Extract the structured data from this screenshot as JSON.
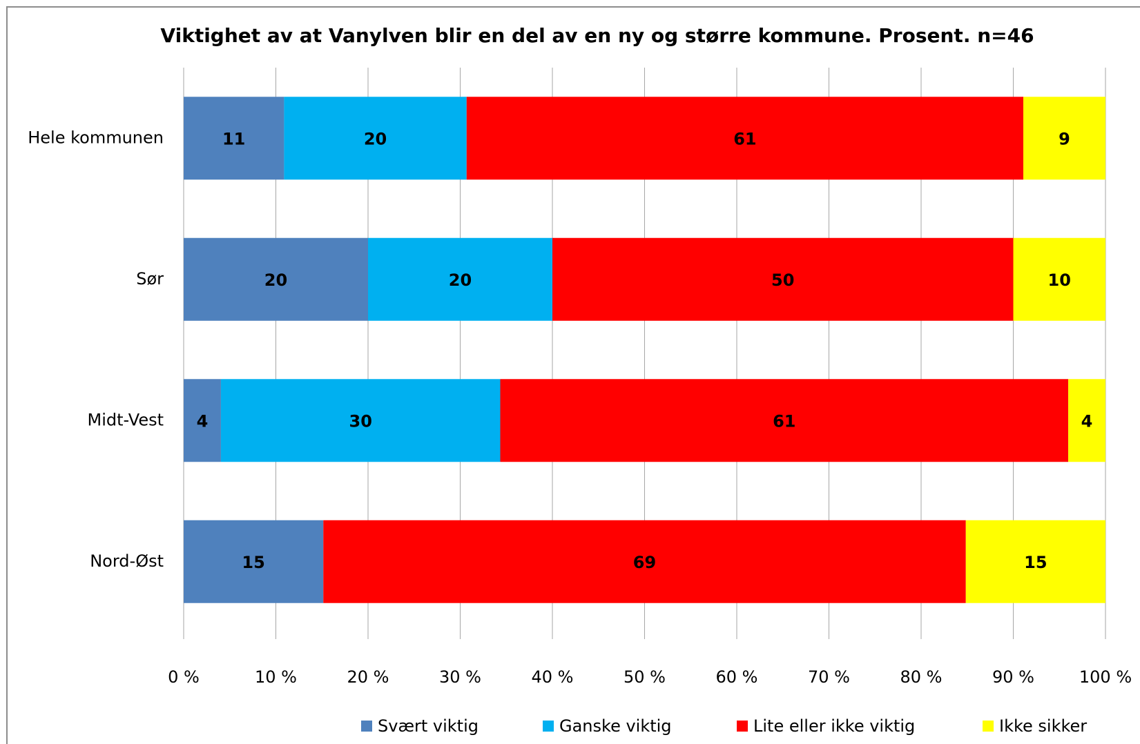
{
  "chart_data": {
    "type": "bar",
    "orientation": "horizontal",
    "stacking": "percent",
    "title": "Viktighet av at Vanylven blir en del av en ny og større kommune. Prosent. n=46",
    "categories": [
      "Hele kommunen",
      "Sør",
      "Midt-Vest",
      "Nord-Øst"
    ],
    "series": [
      {
        "name": "Svært viktig",
        "color": "#4f81bd",
        "values": [
          11,
          20,
          4,
          15
        ]
      },
      {
        "name": "Ganske viktig",
        "color": "#00b0f0",
        "values": [
          20,
          20,
          30,
          null
        ]
      },
      {
        "name": "Lite eller ikke viktig",
        "color": "#ff0000",
        "values": [
          61,
          50,
          61,
          69
        ]
      },
      {
        "name": "Ikke sikker",
        "color": "#ffff00",
        "values": [
          9,
          10,
          4,
          15
        ]
      }
    ],
    "xlim": [
      0,
      100
    ],
    "xticks": [
      {
        "value": 0,
        "label": "0 %"
      },
      {
        "value": 10,
        "label": "10 %"
      },
      {
        "value": 20,
        "label": "20 %"
      },
      {
        "value": 30,
        "label": "30 %"
      },
      {
        "value": 40,
        "label": "40 %"
      },
      {
        "value": 50,
        "label": "50 %"
      },
      {
        "value": 60,
        "label": "60 %"
      },
      {
        "value": 70,
        "label": "70 %"
      },
      {
        "value": 80,
        "label": "80 %"
      },
      {
        "value": 90,
        "label": "90 %"
      },
      {
        "value": 100,
        "label": "100 %"
      }
    ],
    "grid": true,
    "legend": "bottom"
  }
}
